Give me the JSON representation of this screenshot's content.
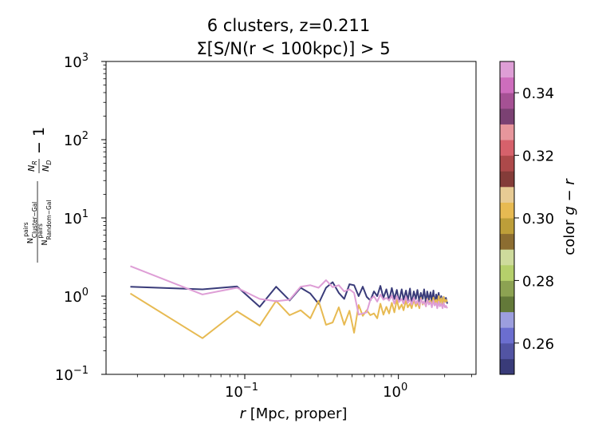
{
  "chart_data": {
    "type": "line",
    "title": "6 clusters, z=0.211",
    "subtitle": "Σ[S/N(r < 100kpc)] > 5",
    "xlabel_italic": "r",
    "xlabel_rest": " [Mpc, proper]",
    "ylabel": "N^pairs_Cluster−Gal N_R / N^pairs_Random−Gal N_D − 1",
    "xscale": "log",
    "yscale": "log",
    "xlim": [
      0.0125,
      3.2
    ],
    "ylim": [
      0.1,
      1000
    ],
    "x_ticks": [
      {
        "value": 0.1,
        "base": "10",
        "exp": "−1"
      },
      {
        "value": 1,
        "base": "10",
        "exp": "0"
      }
    ],
    "y_ticks": [
      {
        "value": 0.1,
        "base": "10",
        "exp": "−1"
      },
      {
        "value": 1,
        "base": "10",
        "exp": "0"
      },
      {
        "value": 10,
        "base": "10",
        "exp": "1"
      },
      {
        "value": 100,
        "base": "10",
        "exp": "2"
      },
      {
        "value": 1000,
        "base": "10",
        "exp": "3"
      }
    ],
    "grid": false,
    "legend": "none",
    "colorbar": {
      "label_prefix": "color ",
      "label_math": "g − r",
      "min": 0.25,
      "max": 0.35,
      "ticks": [
        "0.26",
        "0.28",
        "0.30",
        "0.32",
        "0.34"
      ],
      "colors": [
        "#393b79",
        "#5254a3",
        "#6b6ecf",
        "#9c9ede",
        "#637939",
        "#8ca252",
        "#b5cf6b",
        "#cedb9c",
        "#8c6d31",
        "#bd9e39",
        "#e7ba52",
        "#e7cb94",
        "#843c39",
        "#ad494a",
        "#d6616b",
        "#e7969c",
        "#7b4173",
        "#a55194",
        "#ce6dbd",
        "#de9ed6"
      ]
    },
    "series": [
      {
        "color": "#393b79",
        "x": [
          0.018,
          0.053,
          0.089,
          0.125,
          0.16,
          0.196,
          0.231,
          0.267,
          0.302,
          0.338,
          0.373,
          0.409,
          0.444,
          0.48,
          0.515,
          0.551,
          0.586,
          0.622,
          0.657,
          0.693,
          0.728,
          0.764,
          0.799,
          0.835,
          0.87,
          0.906,
          0.941,
          0.977,
          1.01,
          1.05,
          1.08,
          1.12,
          1.15,
          1.19,
          1.22,
          1.26,
          1.3,
          1.33,
          1.37,
          1.4,
          1.44,
          1.47,
          1.51,
          1.54,
          1.58,
          1.62,
          1.65,
          1.69,
          1.72,
          1.76,
          1.79,
          1.83,
          1.86,
          1.9,
          1.94,
          1.97,
          2.01,
          2.04,
          2.08
        ],
        "y": [
          1.32,
          1.22,
          1.33,
          0.73,
          1.32,
          0.88,
          1.28,
          1.08,
          0.8,
          1.28,
          1.51,
          1.1,
          0.92,
          1.42,
          1.38,
          1.0,
          1.32,
          0.98,
          0.88,
          1.15,
          1.0,
          1.35,
          0.95,
          1.22,
          0.88,
          1.27,
          0.92,
          1.2,
          0.85,
          1.22,
          0.9,
          1.18,
          0.88,
          1.25,
          0.8,
          1.15,
          0.92,
          1.2,
          0.85,
          1.1,
          0.92,
          1.22,
          0.82,
          1.15,
          0.9,
          1.12,
          0.85,
          1.18,
          0.78,
          1.05,
          0.9,
          1.1,
          0.82,
          1.0,
          0.75,
          0.98,
          0.88,
          0.95,
          0.8
        ]
      },
      {
        "color": "#e7ba52",
        "x": [
          0.018,
          0.053,
          0.089,
          0.125,
          0.16,
          0.196,
          0.231,
          0.267,
          0.302,
          0.338,
          0.373,
          0.409,
          0.444,
          0.48,
          0.515,
          0.551,
          0.586,
          0.622,
          0.657,
          0.693,
          0.728,
          0.764,
          0.799,
          0.835,
          0.87,
          0.906,
          0.941,
          0.977,
          1.01,
          1.05,
          1.08,
          1.12,
          1.15,
          1.19,
          1.22,
          1.26,
          1.3,
          1.33,
          1.37,
          1.4,
          1.44,
          1.47,
          1.51,
          1.54,
          1.58,
          1.62,
          1.65,
          1.69,
          1.72,
          1.76,
          1.79,
          1.83,
          1.86,
          1.9,
          1.94,
          1.97,
          2.01,
          2.04,
          2.08
        ],
        "y": [
          1.08,
          0.29,
          0.64,
          0.42,
          0.87,
          0.57,
          0.66,
          0.52,
          0.87,
          0.43,
          0.46,
          0.72,
          0.43,
          0.65,
          0.34,
          0.77,
          0.56,
          0.66,
          0.57,
          0.6,
          0.52,
          0.8,
          0.58,
          0.73,
          0.6,
          0.82,
          0.62,
          0.9,
          0.68,
          0.78,
          0.66,
          0.88,
          0.72,
          0.8,
          0.7,
          0.9,
          0.74,
          0.84,
          0.7,
          0.95,
          0.78,
          0.86,
          0.74,
          0.92,
          0.8,
          0.88,
          0.76,
          0.96,
          0.82,
          0.9,
          0.78,
          1.0,
          0.82,
          0.94,
          0.8,
          0.98,
          0.84,
          0.9,
          0.85
        ]
      },
      {
        "color": "#de9ed6",
        "x": [
          0.018,
          0.053,
          0.089,
          0.125,
          0.16,
          0.196,
          0.231,
          0.267,
          0.302,
          0.338,
          0.373,
          0.409,
          0.444,
          0.48,
          0.515,
          0.551,
          0.586,
          0.622,
          0.657,
          0.693,
          0.728,
          0.764,
          0.799,
          0.835,
          0.87,
          0.906,
          0.941,
          0.977,
          1.01,
          1.05,
          1.08,
          1.12,
          1.15,
          1.19,
          1.22,
          1.26,
          1.3,
          1.33,
          1.37,
          1.4,
          1.44,
          1.47,
          1.51,
          1.54,
          1.58,
          1.62,
          1.65,
          1.69,
          1.72,
          1.76,
          1.79,
          1.83,
          1.86,
          1.9,
          1.94,
          1.97,
          2.01,
          2.04,
          2.08
        ],
        "y": [
          2.42,
          1.05,
          1.28,
          0.92,
          0.86,
          0.9,
          1.32,
          1.38,
          1.28,
          1.6,
          1.3,
          1.38,
          1.15,
          1.22,
          1.1,
          0.58,
          0.6,
          0.62,
          0.9,
          1.0,
          0.85,
          1.05,
          0.9,
          0.95,
          0.88,
          1.02,
          0.8,
          1.0,
          0.84,
          0.92,
          0.8,
          0.98,
          0.82,
          0.9,
          0.78,
          0.95,
          0.8,
          0.88,
          0.76,
          0.92,
          0.8,
          0.86,
          0.74,
          0.9,
          0.78,
          0.84,
          0.72,
          0.88,
          0.76,
          0.82,
          0.7,
          0.85,
          0.74,
          0.8,
          0.7,
          0.82,
          0.72,
          0.75,
          0.7
        ]
      }
    ]
  }
}
